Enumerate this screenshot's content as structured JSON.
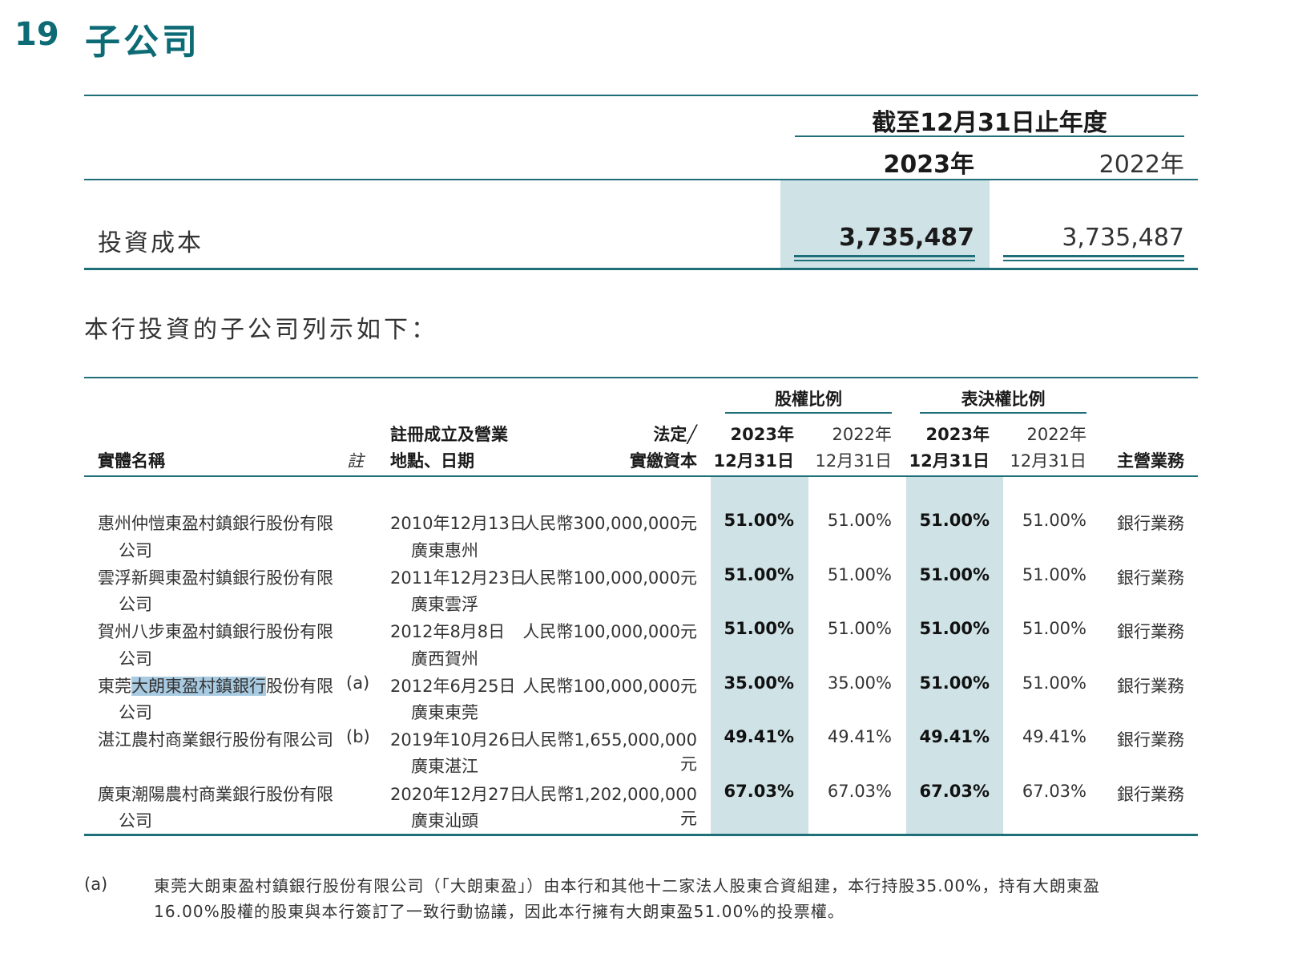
{
  "section": {
    "number": "19",
    "title": "子公司"
  },
  "summary": {
    "period_header": "截至12月31日止年度",
    "col_2023": "2023年",
    "col_2022": "2022年",
    "row_label": "投資成本",
    "value_2023": "3,735,487",
    "value_2022": "3,735,487"
  },
  "intro": "本行投資的子公司列示如下：",
  "table": {
    "headers": {
      "entity": "實體名稱",
      "note": "註",
      "place_line1": "註冊成立及營業",
      "place_line2": "地點、日期",
      "capital_line1": "法定╱",
      "capital_line2": "實繳資本",
      "equity_group": "股權比例",
      "voting_group": "表決權比例",
      "y2023_line1": "2023年",
      "y2023_line2": "12月31日",
      "y2022_line1": "2022年",
      "y2022_line2": "12月31日",
      "business": "主營業務"
    },
    "rows": [
      {
        "name1": "惠州仲愷東盈村鎮銀行股份有限",
        "name2": "公司",
        "note": "",
        "date": "2010年12月13日",
        "place": "廣東惠州",
        "capital": "人民幣300,000,000元",
        "eq2023": "51.00%",
        "eq2022": "51.00%",
        "vt2023": "51.00%",
        "vt2022": "51.00%",
        "business": "銀行業務"
      },
      {
        "name1": "雲浮新興東盈村鎮銀行股份有限",
        "name2": "公司",
        "note": "",
        "date": "2011年12月23日",
        "place": "廣東雲浮",
        "capital": "人民幣100,000,000元",
        "eq2023": "51.00%",
        "eq2022": "51.00%",
        "vt2023": "51.00%",
        "vt2022": "51.00%",
        "business": "銀行業務"
      },
      {
        "name1": "賀州八步東盈村鎮銀行股份有限",
        "name2": "公司",
        "note": "",
        "date": "2012年8月8日",
        "place": "廣西賀州",
        "capital": "人民幣100,000,000元",
        "eq2023": "51.00%",
        "eq2022": "51.00%",
        "vt2023": "51.00%",
        "vt2022": "51.00%",
        "business": "銀行業務"
      },
      {
        "name1_pre": "東莞",
        "name1_hl": "大朗東盈村鎮銀行",
        "name1_post": "股份有限",
        "name2": "公司",
        "note": "(a)",
        "date": "2012年6月25日",
        "place": "廣東東莞",
        "capital": "人民幣100,000,000元",
        "eq2023": "35.00%",
        "eq2022": "35.00%",
        "vt2023": "51.00%",
        "vt2022": "51.00%",
        "business": "銀行業務"
      },
      {
        "name1": "湛江農村商業銀行股份有限公司",
        "name2": "",
        "note": "(b)",
        "date": "2019年10月26日",
        "place": "廣東湛江",
        "capital": "人民幣1,655,000,000元",
        "eq2023": "49.41%",
        "eq2022": "49.41%",
        "vt2023": "49.41%",
        "vt2022": "49.41%",
        "business": "銀行業務"
      },
      {
        "name1": "廣東潮陽農村商業銀行股份有限",
        "name2": "公司",
        "note": "",
        "date": "2020年12月27日",
        "place": "廣東汕頭",
        "capital": "人民幣1,202,000,000元",
        "eq2023": "67.03%",
        "eq2022": "67.03%",
        "vt2023": "67.03%",
        "vt2022": "67.03%",
        "business": "銀行業務"
      }
    ]
  },
  "footnote": {
    "label": "(a)",
    "line1": "東莞大朗東盈村鎮銀行股份有限公司（「大朗東盈」）由本行和其他十二家法人股東合資組建，本行持股35.00%，持有大朗東盈",
    "line2": "16.00%股權的股東與本行簽訂了一致行動協議，因此本行擁有大朗東盈51.00%的投票權。"
  }
}
